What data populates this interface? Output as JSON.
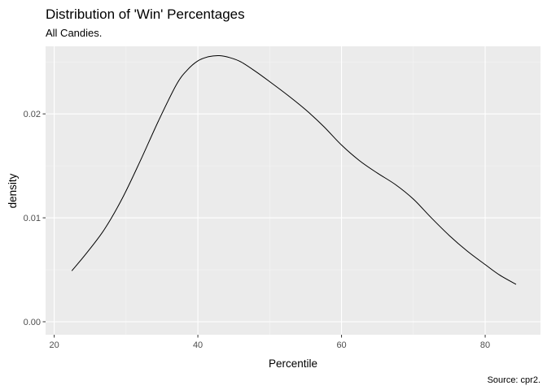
{
  "chart_data": {
    "type": "line",
    "title": "Distribution of 'Win' Percentages",
    "subtitle": "All Candies.",
    "caption": "Source: cpr2.",
    "xlabel": "Percentile",
    "ylabel": "density",
    "xlim": [
      18.8,
      87.7
    ],
    "ylim": [
      -0.00125,
      0.0265
    ],
    "x_ticks": [
      20,
      40,
      60,
      80
    ],
    "x_minor_ticks": [
      30,
      50,
      70
    ],
    "y_ticks": [
      0.0,
      0.01,
      0.02
    ],
    "y_tick_labels": [
      "0.00",
      "0.01",
      "0.02"
    ],
    "y_minor_ticks": [
      0.005,
      0.015,
      0.025
    ],
    "grid": true,
    "line_color": "#000000",
    "series": [
      {
        "x": [
          22.45,
          24.5,
          27.0,
          29.5,
          32.0,
          34.5,
          37.0,
          38.5,
          40.0,
          41.5,
          43.0,
          44.5,
          46.0,
          48.0,
          50.0,
          52.5,
          55.0,
          57.5,
          60.0,
          62.5,
          65.0,
          67.5,
          70.0,
          72.5,
          75.0,
          77.5,
          80.0,
          82.0,
          84.3
        ],
        "values": [
          0.0049,
          0.0066,
          0.0089,
          0.0119,
          0.0155,
          0.0193,
          0.0228,
          0.0242,
          0.0251,
          0.0255,
          0.0256,
          0.0254,
          0.025,
          0.0241,
          0.0231,
          0.0218,
          0.0204,
          0.0188,
          0.017,
          0.0155,
          0.0143,
          0.0132,
          0.0118,
          0.01,
          0.0083,
          0.0068,
          0.0055,
          0.0045,
          0.0036
        ]
      }
    ]
  }
}
